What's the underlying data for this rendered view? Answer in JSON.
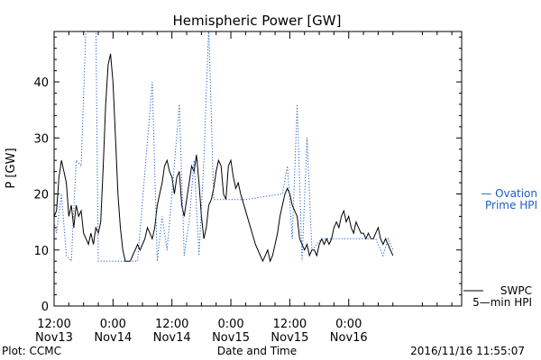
{
  "chart_data": {
    "type": "line",
    "title": "Hemispheric Power [GW]",
    "ylabel": "P [GW]",
    "xlabel": "Date and Time",
    "ylim": [
      0,
      49
    ],
    "xlim": [
      "2016/11/13 12:00",
      "2016/11/16 23:00"
    ],
    "grid": false,
    "y_ticks": [
      0,
      10,
      20,
      30,
      40
    ],
    "x_ticks": [
      {
        "time": "2016/11/13 12:00",
        "line1": "12:00",
        "line2": "Nov13"
      },
      {
        "time": "2016/11/14 00:00",
        "line1": "0:00",
        "line2": "Nov14"
      },
      {
        "time": "2016/11/14 12:00",
        "line1": "12:00",
        "line2": "Nov14"
      },
      {
        "time": "2016/11/15 00:00",
        "line1": "0:00",
        "line2": "Nov15"
      },
      {
        "time": "2016/11/15 12:00",
        "line1": "12:00",
        "line2": "Nov15"
      },
      {
        "time": "2016/11/16 00:00",
        "line1": "0:00",
        "line2": "Nov16"
      }
    ],
    "series": [
      {
        "name": "SWPC 5-min HPI",
        "color": "#000000",
        "style": "solid",
        "points": [
          [
            "2016/11/13 12:00",
            16
          ],
          [
            "2016/11/13 12:30",
            17
          ],
          [
            "2016/11/13 13:00",
            23
          ],
          [
            "2016/11/13 13:30",
            26
          ],
          [
            "2016/11/13 14:00",
            24
          ],
          [
            "2016/11/13 14:30",
            22
          ],
          [
            "2016/11/13 15:00",
            16
          ],
          [
            "2016/11/13 15:30",
            18
          ],
          [
            "2016/11/13 16:00",
            14
          ],
          [
            "2016/11/13 16:30",
            18
          ],
          [
            "2016/11/13 17:00",
            16
          ],
          [
            "2016/11/13 17:30",
            17
          ],
          [
            "2016/11/13 18:00",
            13
          ],
          [
            "2016/11/13 18:30",
            12
          ],
          [
            "2016/11/13 19:00",
            11
          ],
          [
            "2016/11/13 19:30",
            13
          ],
          [
            "2016/11/13 20:00",
            11
          ],
          [
            "2016/11/13 20:30",
            14
          ],
          [
            "2016/11/13 21:00",
            13
          ],
          [
            "2016/11/13 21:30",
            15
          ],
          [
            "2016/11/13 22:00",
            25
          ],
          [
            "2016/11/13 22:30",
            36
          ],
          [
            "2016/11/13 23:00",
            43
          ],
          [
            "2016/11/13 23:30",
            45
          ],
          [
            "2016/11/14 00:00",
            40
          ],
          [
            "2016/11/14 00:30",
            30
          ],
          [
            "2016/11/14 01:00",
            20
          ],
          [
            "2016/11/14 01:30",
            14
          ],
          [
            "2016/11/14 02:00",
            10
          ],
          [
            "2016/11/14 02:30",
            8
          ],
          [
            "2016/11/14 03:00",
            8
          ],
          [
            "2016/11/14 03:30",
            8
          ],
          [
            "2016/11/14 04:00",
            9
          ],
          [
            "2016/11/14 04:30",
            10
          ],
          [
            "2016/11/14 05:00",
            11
          ],
          [
            "2016/11/14 05:30",
            10
          ],
          [
            "2016/11/14 06:00",
            11
          ],
          [
            "2016/11/14 06:30",
            12
          ],
          [
            "2016/11/14 07:00",
            14
          ],
          [
            "2016/11/14 07:30",
            13
          ],
          [
            "2016/11/14 08:00",
            12
          ],
          [
            "2016/11/14 08:30",
            14
          ],
          [
            "2016/11/14 09:00",
            18
          ],
          [
            "2016/11/14 09:30",
            20
          ],
          [
            "2016/11/14 10:00",
            22
          ],
          [
            "2016/11/14 10:30",
            25
          ],
          [
            "2016/11/14 11:00",
            26
          ],
          [
            "2016/11/14 11:30",
            24
          ],
          [
            "2016/11/14 12:00",
            23
          ],
          [
            "2016/11/14 12:30",
            20
          ],
          [
            "2016/11/14 13:00",
            23
          ],
          [
            "2016/11/14 13:30",
            24
          ],
          [
            "2016/11/14 14:00",
            18
          ],
          [
            "2016/11/14 14:30",
            16
          ],
          [
            "2016/11/14 15:00",
            19
          ],
          [
            "2016/11/14 15:30",
            22
          ],
          [
            "2016/11/14 16:00",
            25
          ],
          [
            "2016/11/14 16:30",
            24
          ],
          [
            "2016/11/14 17:00",
            27
          ],
          [
            "2016/11/14 17:30",
            22
          ],
          [
            "2016/11/14 18:00",
            16
          ],
          [
            "2016/11/14 18:30",
            12
          ],
          [
            "2016/11/14 19:00",
            14
          ],
          [
            "2016/11/14 19:30",
            18
          ],
          [
            "2016/11/14 20:00",
            19
          ],
          [
            "2016/11/14 20:30",
            21
          ],
          [
            "2016/11/14 21:00",
            24
          ],
          [
            "2016/11/14 21:30",
            26
          ],
          [
            "2016/11/14 22:00",
            25
          ],
          [
            "2016/11/14 22:30",
            20
          ],
          [
            "2016/11/14 23:00",
            19
          ],
          [
            "2016/11/14 23:30",
            25
          ],
          [
            "2016/11/15 00:00",
            26
          ],
          [
            "2016/11/15 00:30",
            23
          ],
          [
            "2016/11/15 01:00",
            21
          ],
          [
            "2016/11/15 01:30",
            22
          ],
          [
            "2016/11/15 02:00",
            20
          ],
          [
            "2016/11/15 03:00",
            17
          ],
          [
            "2016/11/15 04:00",
            14
          ],
          [
            "2016/11/15 05:00",
            11
          ],
          [
            "2016/11/15 06:00",
            9
          ],
          [
            "2016/11/15 06:30",
            8
          ],
          [
            "2016/11/15 07:00",
            9
          ],
          [
            "2016/11/15 07:30",
            10
          ],
          [
            "2016/11/15 08:00",
            8
          ],
          [
            "2016/11/15 08:30",
            9
          ],
          [
            "2016/11/15 09:00",
            11
          ],
          [
            "2016/11/15 09:30",
            13
          ],
          [
            "2016/11/15 10:00",
            16
          ],
          [
            "2016/11/15 10:30",
            18
          ],
          [
            "2016/11/15 11:00",
            20
          ],
          [
            "2016/11/15 11:30",
            21
          ],
          [
            "2016/11/15 12:00",
            20
          ],
          [
            "2016/11/15 12:30",
            18
          ],
          [
            "2016/11/15 13:00",
            17
          ],
          [
            "2016/11/15 13:30",
            16
          ],
          [
            "2016/11/15 14:00",
            12
          ],
          [
            "2016/11/15 14:30",
            11
          ],
          [
            "2016/11/15 15:00",
            10
          ],
          [
            "2016/11/15 15:30",
            11
          ],
          [
            "2016/11/15 16:00",
            9
          ],
          [
            "2016/11/15 16:30",
            10
          ],
          [
            "2016/11/15 17:00",
            10
          ],
          [
            "2016/11/15 17:30",
            9
          ],
          [
            "2016/11/15 18:00",
            11
          ],
          [
            "2016/11/15 18:30",
            12
          ],
          [
            "2016/11/15 19:00",
            11
          ],
          [
            "2016/11/15 19:30",
            12
          ],
          [
            "2016/11/15 20:00",
            11
          ],
          [
            "2016/11/15 20:30",
            12
          ],
          [
            "2016/11/15 21:00",
            14
          ],
          [
            "2016/11/15 21:30",
            15
          ],
          [
            "2016/11/15 22:00",
            14
          ],
          [
            "2016/11/15 22:30",
            16
          ],
          [
            "2016/11/15 23:00",
            17
          ],
          [
            "2016/11/15 23:30",
            15
          ],
          [
            "2016/11/16 00:00",
            16
          ],
          [
            "2016/11/16 00:30",
            14
          ],
          [
            "2016/11/16 01:00",
            13
          ],
          [
            "2016/11/16 01:30",
            15
          ],
          [
            "2016/11/16 02:00",
            14
          ],
          [
            "2016/11/16 02:30",
            13
          ],
          [
            "2016/11/16 03:00",
            13
          ],
          [
            "2016/11/16 03:30",
            12
          ],
          [
            "2016/11/16 04:00",
            13
          ],
          [
            "2016/11/16 04:30",
            12
          ],
          [
            "2016/11/16 05:00",
            12
          ],
          [
            "2016/11/16 05:30",
            13
          ],
          [
            "2016/11/16 06:00",
            14
          ],
          [
            "2016/11/16 06:30",
            12
          ],
          [
            "2016/11/16 07:00",
            11
          ],
          [
            "2016/11/16 07:30",
            12
          ],
          [
            "2016/11/16 08:00",
            11
          ],
          [
            "2016/11/16 08:30",
            10
          ],
          [
            "2016/11/16 09:00",
            9
          ]
        ]
      },
      {
        "name": "Ovation Prime HPI",
        "color": "#1c5cc8",
        "style": "dotted",
        "points": [
          [
            "2016/11/13 12:00",
            15
          ],
          [
            "2016/11/13 12:30",
            13
          ],
          [
            "2016/11/13 13:30",
            20
          ],
          [
            "2016/11/13 14:30",
            9
          ],
          [
            "2016/11/13 15:30",
            8
          ],
          [
            "2016/11/13 16:30",
            26
          ],
          [
            "2016/11/13 17:30",
            25
          ],
          [
            "2016/11/13 18:30",
            50
          ],
          [
            "2016/11/13 19:00",
            50
          ],
          [
            "2016/11/13 20:30",
            50
          ],
          [
            "2016/11/13 21:00",
            8
          ],
          [
            "2016/11/14 05:00",
            8
          ],
          [
            "2016/11/14 08:00",
            40
          ],
          [
            "2016/11/14 09:00",
            8
          ],
          [
            "2016/11/14 10:00",
            16
          ],
          [
            "2016/11/14 11:00",
            10
          ],
          [
            "2016/11/14 12:00",
            20
          ],
          [
            "2016/11/14 13:30",
            36
          ],
          [
            "2016/11/14 14:30",
            9
          ],
          [
            "2016/11/14 15:30",
            15
          ],
          [
            "2016/11/14 16:30",
            26
          ],
          [
            "2016/11/14 17:30",
            9
          ],
          [
            "2016/11/14 18:30",
            26
          ],
          [
            "2016/11/14 19:30",
            50
          ],
          [
            "2016/11/14 20:30",
            19
          ],
          [
            "2016/11/15 00:00",
            19
          ],
          [
            "2016/11/15 03:00",
            19
          ],
          [
            "2016/11/15 10:30",
            20
          ],
          [
            "2016/11/15 11:30",
            25
          ],
          [
            "2016/11/15 12:30",
            12
          ],
          [
            "2016/11/15 13:30",
            36
          ],
          [
            "2016/11/15 14:30",
            8
          ],
          [
            "2016/11/15 15:30",
            30
          ],
          [
            "2016/11/15 16:30",
            10
          ],
          [
            "2016/11/15 17:30",
            11
          ],
          [
            "2016/11/15 18:30",
            12
          ],
          [
            "2016/11/16 00:00",
            12
          ],
          [
            "2016/11/16 05:30",
            12
          ],
          [
            "2016/11/16 07:00",
            9
          ],
          [
            "2016/11/16 08:00",
            12
          ],
          [
            "2016/11/16 09:00",
            10
          ]
        ]
      }
    ],
    "legend": {
      "ovation_line1": "— Ovation",
      "ovation_line2": "Prime HPI",
      "swpc_line1": "SWPC",
      "swpc_line2": "5—min HPI"
    }
  },
  "footer": {
    "plot_credit": "Plot: CCMC",
    "timestamp": "2016/11/16 11:55:07"
  }
}
